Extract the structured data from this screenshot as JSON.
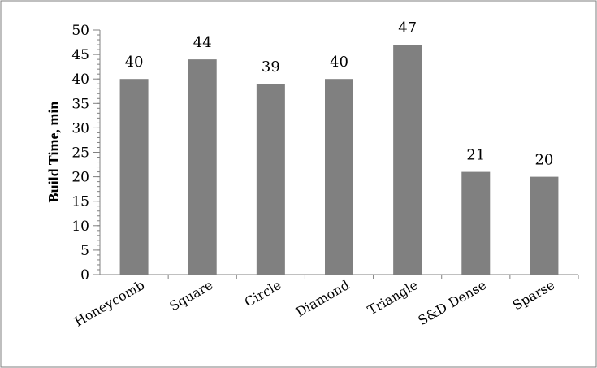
{
  "chart_data": {
    "type": "bar",
    "categories": [
      "Honeycomb",
      "Square",
      "Circle",
      "Diamond",
      "Triangle",
      "S&D Dense",
      "Sparse"
    ],
    "values": [
      40,
      44,
      39,
      40,
      47,
      21,
      20
    ],
    "data_labels": [
      "40",
      "44",
      "39",
      "40",
      "47",
      "21",
      "20"
    ],
    "title": "",
    "xlabel": "",
    "ylabel": "Build Time, min",
    "ylim": [
      0,
      50
    ],
    "yticks": [
      0,
      5,
      10,
      15,
      20,
      25,
      30,
      35,
      40,
      45,
      50
    ],
    "minor_tick_step": 1,
    "grid": false,
    "legend": "none",
    "bar_color": "#808080",
    "border_color": "#7f7f7f"
  }
}
